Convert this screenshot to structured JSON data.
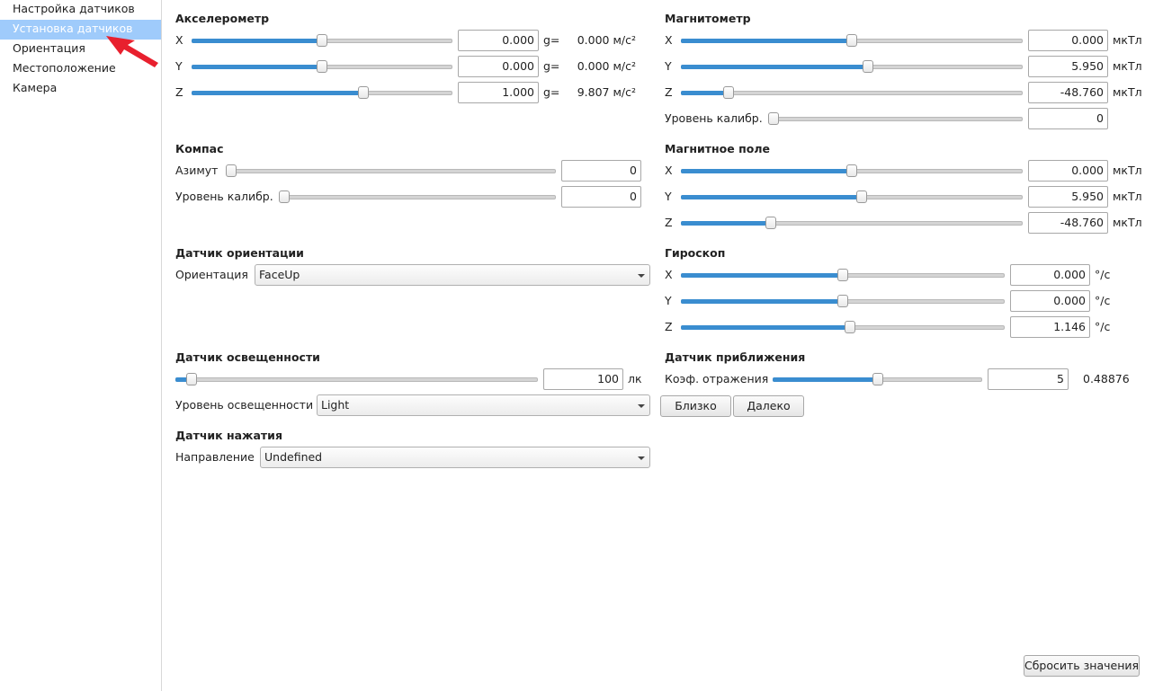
{
  "sidebar": {
    "items": [
      "Настройка датчиков",
      "Установка датчиков",
      "Ориентация",
      "Местоположение",
      "Камера"
    ]
  },
  "accelerometer": {
    "title": "Акселерометр",
    "rows": [
      {
        "axis": "X",
        "value": "0.000",
        "unit": "g=",
        "converted": "0.000 м/с²"
      },
      {
        "axis": "Y",
        "value": "0.000",
        "unit": "g=",
        "converted": "0.000 м/с²"
      },
      {
        "axis": "Z",
        "value": "1.000",
        "unit": "g=",
        "converted": "9.807 м/с²"
      }
    ]
  },
  "magnetometer": {
    "title": "Магнитометр",
    "rows": [
      {
        "axis": "X",
        "value": "0.000",
        "unit": "мкТл"
      },
      {
        "axis": "Y",
        "value": "5.950",
        "unit": "мкТл"
      },
      {
        "axis": "Z",
        "value": "-48.760",
        "unit": "мкТл"
      }
    ],
    "calibration": {
      "label": "Уровень калибр.",
      "value": "0"
    }
  },
  "compass": {
    "title": "Компас",
    "azimuth": {
      "label": "Азимут",
      "value": "0"
    },
    "calibration": {
      "label": "Уровень калибр.",
      "value": "0"
    }
  },
  "magnetic_field": {
    "title": "Магнитное поле",
    "rows": [
      {
        "axis": "X",
        "value": "0.000",
        "unit": "мкТл"
      },
      {
        "axis": "Y",
        "value": "5.950",
        "unit": "мкТл"
      },
      {
        "axis": "Z",
        "value": "-48.760",
        "unit": "мкТл"
      }
    ]
  },
  "orientation_sensor": {
    "title": "Датчик ориентации",
    "label": "Ориентация",
    "value": "FaceUp"
  },
  "gyroscope": {
    "title": "Гироскоп",
    "rows": [
      {
        "axis": "X",
        "value": "0.000",
        "unit": "°/c"
      },
      {
        "axis": "Y",
        "value": "0.000",
        "unit": "°/c"
      },
      {
        "axis": "Z",
        "value": "1.146",
        "unit": "°/c"
      }
    ]
  },
  "light_sensor": {
    "title": "Датчик освещенности",
    "value": "100",
    "unit": "лк",
    "level_label": "Уровень освещенности",
    "level": "Light"
  },
  "proximity_sensor": {
    "title": "Датчик приближения",
    "label": "Коэф. отражения",
    "value": "5",
    "reading": "0.48876",
    "buttons": [
      "Близко",
      "Далеко"
    ]
  },
  "pressure_sensor": {
    "title": "Датчик нажатия",
    "label": "Направление",
    "value": "Undefined"
  },
  "reset_button": "Сбросить значения"
}
